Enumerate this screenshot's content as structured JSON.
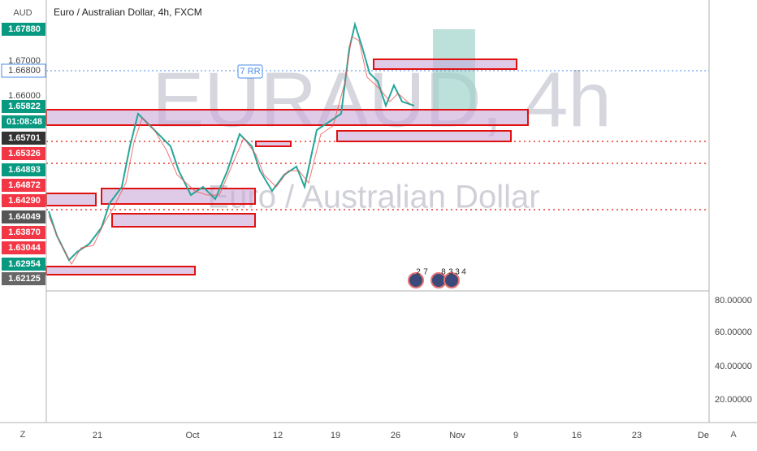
{
  "header": {
    "axis_unit": "AUD",
    "title": "Euro / Australian Dollar, 4h, FXCM"
  },
  "watermark": {
    "symbol": "EURAUD, 4h",
    "name": "Euro / Australian Dollar"
  },
  "price_labels": [
    "1.67880",
    "1.67000",
    "1.66800",
    "1.66000",
    "1.65822",
    "01:08:48",
    "1.65701",
    "1.65326",
    "1.64893",
    "1.64872",
    "1.64290",
    "1.64049",
    "1.63870",
    "1.63044",
    "1.62954",
    "1.62125"
  ],
  "rr_label": "7 RR",
  "event_badges": [
    "2",
    "7",
    "8",
    "3",
    "3",
    "4"
  ],
  "indicator_ticks": [
    "80.00000",
    "60.00000",
    "40.00000",
    "20.00000"
  ],
  "time_labels": [
    "21",
    "Oct",
    "12",
    "19",
    "26",
    "Nov",
    "9",
    "16",
    "23",
    "De"
  ],
  "footer": {
    "left": "Z",
    "right": "A"
  }
}
